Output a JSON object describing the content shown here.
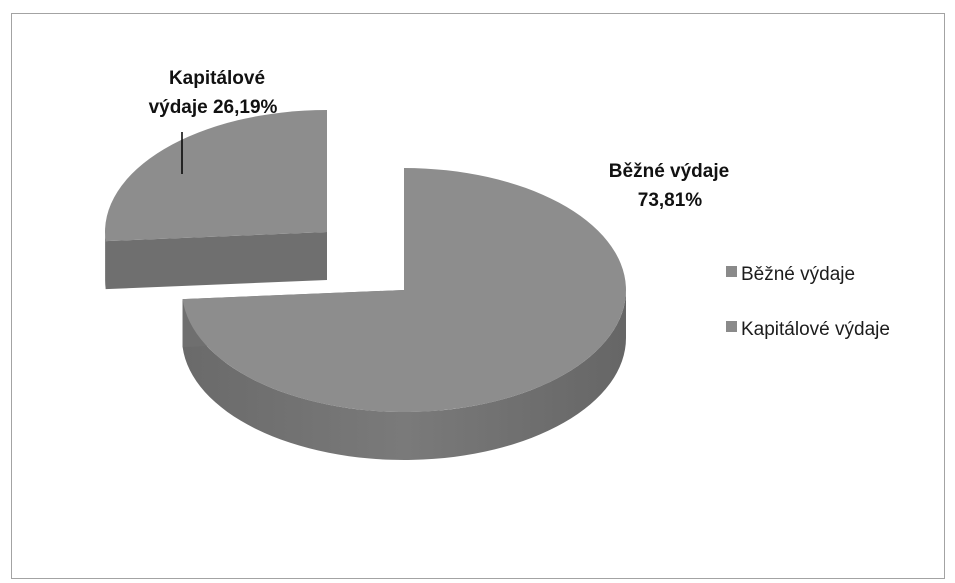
{
  "chart_data": {
    "type": "pie",
    "style": "3d-exploded",
    "slices": [
      {
        "name": "Běžné výdaje",
        "value": 73.81,
        "label_lines": [
          "Běžné výdaje",
          "73,81%"
        ],
        "color": "#8d8d8d"
      },
      {
        "name": "Kapitálové výdaje",
        "value": 26.19,
        "label_lines": [
          "Kapitálové",
          "výdaje 26,19%"
        ],
        "color": "#8d8d8d"
      }
    ],
    "legend": {
      "position": "right",
      "items": [
        "Běžné výdaje",
        "Kapitálové výdaje"
      ]
    },
    "colors": {
      "top": "#8d8d8d",
      "side": "#6f6f6f",
      "legend_marker": "#8a8a8a"
    }
  }
}
